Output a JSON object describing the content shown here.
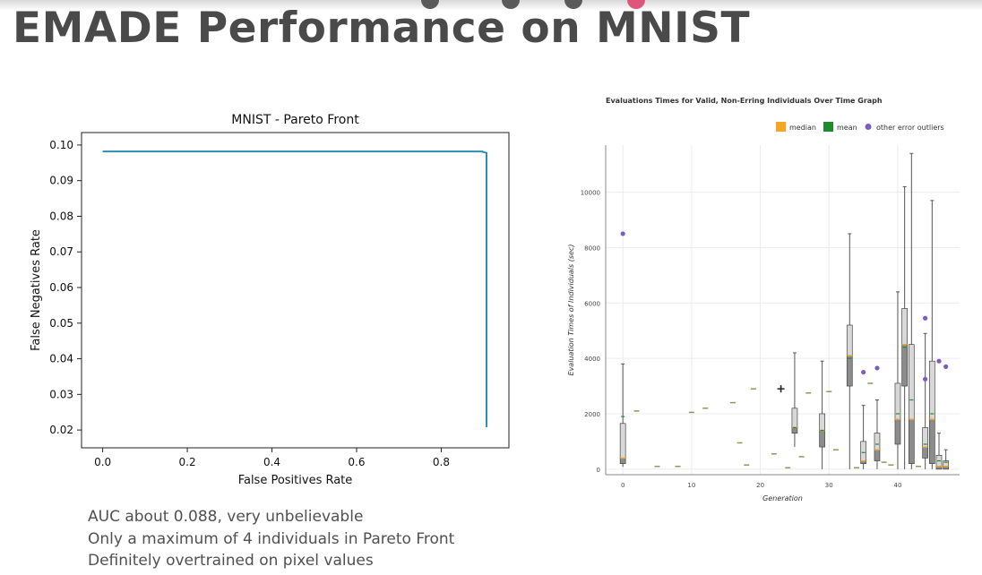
{
  "slide": {
    "title": "EMADE Performance on MNIST",
    "bullets": [
      "AUC about 0.088, very unbelievable",
      "Only a maximum of 4 individuals in Pareto Front",
      "Definitely overtrained on pixel values"
    ],
    "top_dots": [
      "#5a5a5a",
      "#5a5a5a",
      "#5a5a5a",
      "#e0557a"
    ]
  },
  "chart_data": [
    {
      "type": "line",
      "title": "MNIST - Pareto Front",
      "xlabel": "False Positives Rate",
      "ylabel": "False Negatives Rate",
      "xlim": [
        -0.05,
        0.96
      ],
      "ylim": [
        0.015,
        0.1035
      ],
      "xticks": [
        0.0,
        0.2,
        0.4,
        0.6,
        0.8
      ],
      "xtick_labels": [
        "0.0",
        "0.2",
        "0.4",
        "0.6",
        "0.8"
      ],
      "yticks": [
        0.02,
        0.03,
        0.04,
        0.05,
        0.06,
        0.07,
        0.08,
        0.09,
        0.1
      ],
      "ytick_labels": [
        "0.02",
        "0.03",
        "0.04",
        "0.05",
        "0.06",
        "0.07",
        "0.08",
        "0.09",
        "0.10"
      ],
      "grid": false,
      "color": "#2a8fb0",
      "series": [
        {
          "x": [
            0.0,
            0.897,
            0.897,
            0.907,
            0.907
          ],
          "y": [
            0.0982,
            0.0982,
            0.0981,
            0.0978,
            0.0208
          ]
        }
      ]
    },
    {
      "type": "box",
      "title": "Evaluations Times for Valid, Non-Erring Individuals Over Time Graph",
      "xlabel": "Generation",
      "ylabel": "Evaluation Times of Individuals (sec)",
      "xlim": [
        -2.5,
        49
      ],
      "ylim": [
        -200,
        11700
      ],
      "xticks": [
        0,
        10,
        20,
        30,
        40
      ],
      "xtick_labels": [
        "0",
        "10",
        "20",
        "30",
        "40"
      ],
      "yticks": [
        0,
        2000,
        4000,
        6000,
        8000,
        10000
      ],
      "ytick_labels": [
        "0",
        "2000",
        "4000",
        "6000",
        "8000",
        "10000"
      ],
      "grid": true,
      "legend": {
        "position": "top-right",
        "items": [
          {
            "label": "median",
            "color": "#f5a623",
            "marker": "square"
          },
          {
            "label": "mean",
            "color": "#1e8c2e",
            "marker": "square"
          },
          {
            "label": "other error outliers",
            "color": "#7b5cc4",
            "marker": "circle"
          }
        ]
      },
      "boxes": [
        {
          "gen": 0,
          "min": 80,
          "q1": 200,
          "median": 400,
          "q3": 1650,
          "max": 3800,
          "mean": 1900
        },
        {
          "gen": 25,
          "min": 800,
          "q1": 1300,
          "median": 1500,
          "q3": 2200,
          "max": 4200,
          "mean": 1500
        },
        {
          "gen": 29,
          "min": 0,
          "q1": 800,
          "median": 1400,
          "q3": 2000,
          "max": 3900,
          "mean": 1400
        },
        {
          "gen": 33,
          "min": 0,
          "q1": 3000,
          "median": 4100,
          "q3": 5200,
          "max": 8500,
          "mean": 4000
        },
        {
          "gen": 35,
          "min": 0,
          "q1": 200,
          "median": 300,
          "q3": 1000,
          "max": 2300,
          "mean": 600
        },
        {
          "gen": 37,
          "min": 0,
          "q1": 300,
          "median": 700,
          "q3": 1300,
          "max": 2500,
          "mean": 900
        },
        {
          "gen": 40,
          "min": 0,
          "q1": 900,
          "median": 1800,
          "q3": 3100,
          "max": 6400,
          "mean": 2000
        },
        {
          "gen": 41,
          "min": 0,
          "q1": 3000,
          "median": 4500,
          "q3": 5800,
          "max": 10200,
          "mean": 4400
        },
        {
          "gen": 42,
          "min": 0,
          "q1": 200,
          "median": 1800,
          "q3": 4500,
          "max": 11400,
          "mean": 2500
        },
        {
          "gen": 44,
          "min": 0,
          "q1": 400,
          "median": 800,
          "q3": 1500,
          "max": 4900,
          "mean": 900
        },
        {
          "gen": 45,
          "min": 0,
          "q1": 200,
          "median": 1800,
          "q3": 3900,
          "max": 9700,
          "mean": 2000
        },
        {
          "gen": 46,
          "min": 0,
          "q1": 0,
          "median": 100,
          "q3": 500,
          "max": 1300,
          "mean": 300
        },
        {
          "gen": 47,
          "min": 0,
          "q1": 0,
          "median": 100,
          "q3": 300,
          "max": 700,
          "mean": 250
        }
      ],
      "single_values": [
        {
          "gen": 2,
          "value": 2100
        },
        {
          "gen": 5,
          "value": 100
        },
        {
          "gen": 8,
          "value": 100
        },
        {
          "gen": 10,
          "value": 2050
        },
        {
          "gen": 12,
          "value": 2200
        },
        {
          "gen": 16,
          "value": 2400
        },
        {
          "gen": 17,
          "value": 950
        },
        {
          "gen": 18,
          "value": 150
        },
        {
          "gen": 19,
          "value": 2900
        },
        {
          "gen": 22,
          "value": 550
        },
        {
          "gen": 24,
          "value": 50
        },
        {
          "gen": 26,
          "value": 450
        },
        {
          "gen": 27,
          "value": 2750
        },
        {
          "gen": 30,
          "value": 2800
        },
        {
          "gen": 31,
          "value": 700
        },
        {
          "gen": 34,
          "value": 50
        },
        {
          "gen": 36,
          "value": 3100
        },
        {
          "gen": 38,
          "value": 250
        },
        {
          "gen": 39,
          "value": 150
        },
        {
          "gen": 43,
          "value": 100
        }
      ],
      "outliers": [
        {
          "gen": 0,
          "value": 8500
        },
        {
          "gen": 35,
          "value": 3500
        },
        {
          "gen": 37,
          "value": 3650
        },
        {
          "gen": 44,
          "value": 3250
        },
        {
          "gen": 44,
          "value": 5450
        },
        {
          "gen": 46,
          "value": 3900
        },
        {
          "gen": 47,
          "value": 3700
        }
      ],
      "cursor": {
        "gen": 23,
        "value": 2900
      }
    }
  ]
}
